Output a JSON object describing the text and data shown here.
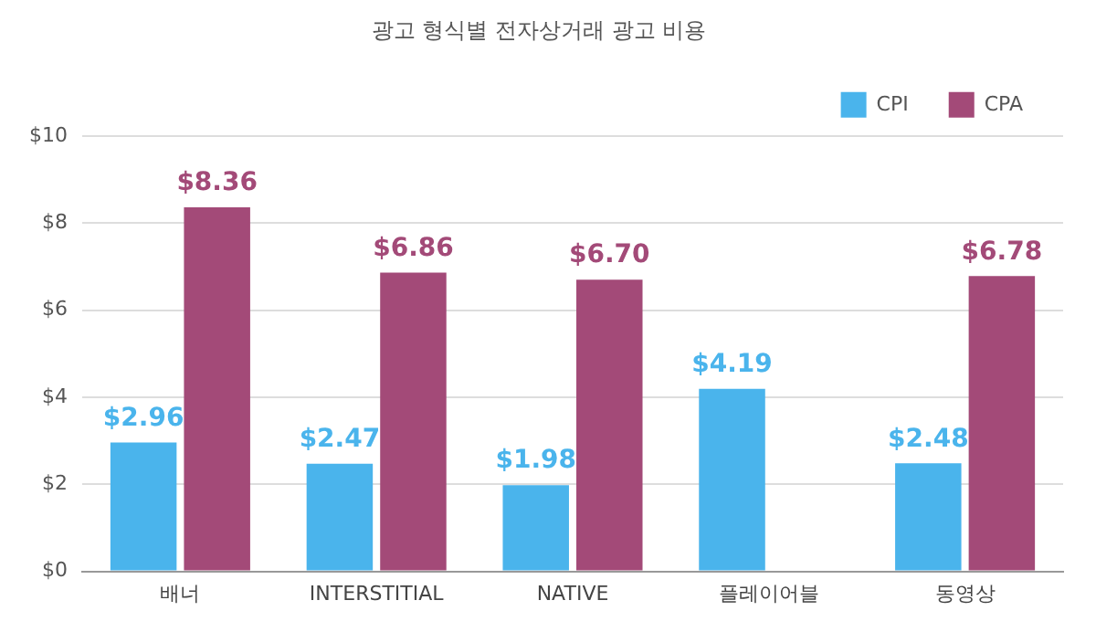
{
  "chart_data": {
    "type": "bar",
    "title": "광고 형식별 전자상거래 광고 비용",
    "categories": [
      "배너",
      "INTERSTITIAL",
      "NATIVE",
      "플레이어블",
      "동영상"
    ],
    "series": [
      {
        "name": "CPI",
        "color": "#4ab4ec",
        "values": [
          2.96,
          2.47,
          1.98,
          4.19,
          2.48
        ],
        "value_labels": [
          "$2.96",
          "$2.47",
          "$1.98",
          "$4.19",
          "$2.48"
        ]
      },
      {
        "name": "CPA",
        "color": "#a34a78",
        "values": [
          8.36,
          6.86,
          6.7,
          null,
          6.78
        ],
        "value_labels": [
          "$8.36",
          "$6.86",
          "$6.70",
          null,
          "$6.78"
        ]
      }
    ],
    "ylim": [
      0,
      10
    ],
    "yticks": [
      {
        "value": 0,
        "label": "$0"
      },
      {
        "value": 2,
        "label": "$2"
      },
      {
        "value": 4,
        "label": "$4"
      },
      {
        "value": 6,
        "label": "$6"
      },
      {
        "value": 8,
        "label": "$8"
      },
      {
        "value": 10,
        "label": "$10"
      }
    ],
    "grid": "y",
    "legend": "top right"
  }
}
